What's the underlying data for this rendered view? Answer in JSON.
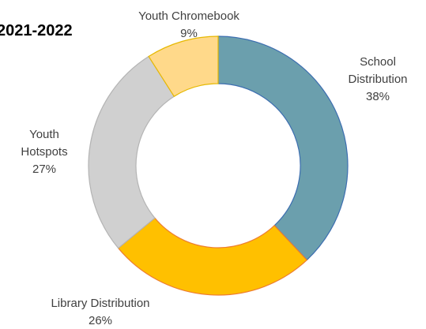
{
  "chart_data": {
    "type": "pie",
    "title": "2021-2022",
    "donut": true,
    "categories": [
      "School Distribution",
      "Library Distribution",
      "Youth Hotspots",
      "Youth Chromebook"
    ],
    "values": [
      38,
      26,
      27,
      9
    ],
    "value_labels": [
      "38%",
      "26%",
      "27%",
      "9%"
    ],
    "label_lines": [
      [
        "School",
        "Distribution",
        "38%"
      ],
      [
        "Library Distribution",
        "26%"
      ],
      [
        "Youth",
        "Hotspots",
        "27%"
      ],
      [
        "Youth Chromebook",
        "9%"
      ]
    ],
    "colors": [
      "#6b9fad",
      "#ffc000",
      "#d0d0d0",
      "#ffd98a"
    ],
    "edge_colors": [
      "#3d6eb0",
      "#ed7d31",
      "#b4b4b4",
      "#e6b800"
    ],
    "legend": "none"
  }
}
